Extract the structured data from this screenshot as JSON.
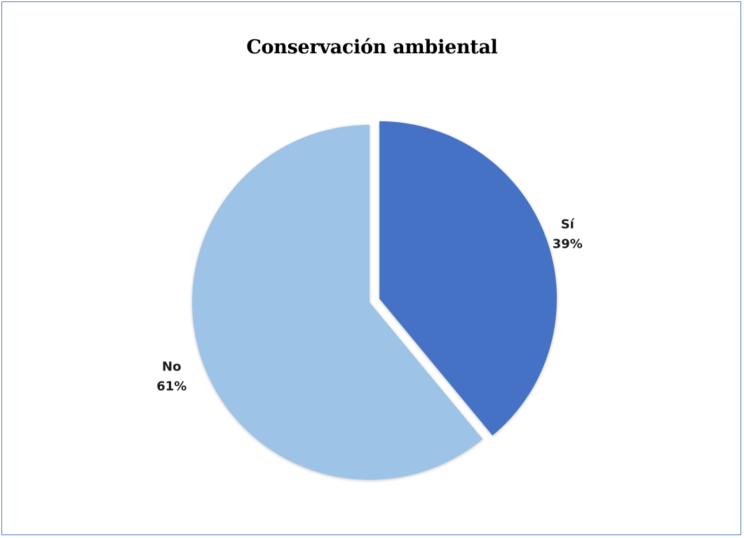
{
  "chart_data": {
    "type": "pie",
    "title": "Conservación ambiental",
    "slices": [
      {
        "label": "Sí",
        "value": 39,
        "value_label": "39%",
        "color": "#4472c4",
        "exploded": true
      },
      {
        "label": "No",
        "value": 61,
        "value_label": "61%",
        "color": "#9dc3e6",
        "exploded": false
      }
    ],
    "start_angle_deg": 0,
    "direction": "clockwise",
    "legend": "none",
    "frame_border_color": "#4f7ac0"
  }
}
